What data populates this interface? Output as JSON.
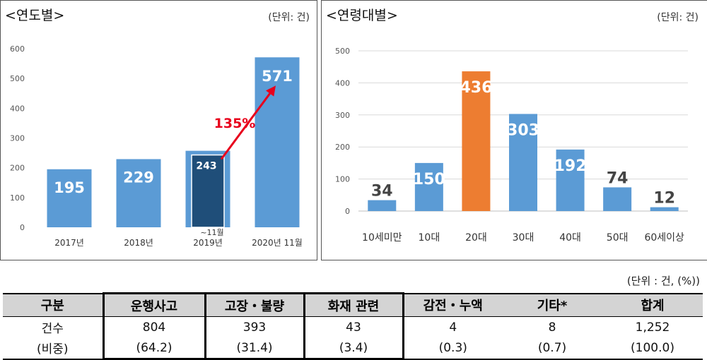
{
  "chart_data": [
    {
      "type": "bar",
      "title": "<연도별>",
      "unit": "(단위: 건)",
      "categories": [
        "2017년",
        "2018년",
        "2019년",
        "2020년 11월"
      ],
      "values": [
        195,
        229,
        257,
        571
      ],
      "ylim": [
        0,
        600
      ],
      "yticks": [
        0,
        100,
        200,
        300,
        400,
        500,
        600
      ],
      "grid": false,
      "color": "#5b9bd5",
      "inset_bar": {
        "category": "2019년",
        "value": 243,
        "label": "~11월",
        "color": "#1f4e79"
      },
      "annotation": {
        "text": "135%",
        "color": "#e8001c"
      }
    },
    {
      "type": "bar",
      "title": "<연령대별>",
      "unit": "(단위: 건)",
      "categories": [
        "10세미만",
        "10대",
        "20대",
        "30대",
        "40대",
        "50대",
        "60세이상"
      ],
      "values": [
        34,
        150,
        436,
        303,
        192,
        74,
        12
      ],
      "ylim": [
        0,
        500
      ],
      "yticks": [
        0,
        100,
        200,
        300,
        400,
        500
      ],
      "grid": true,
      "color": "#5b9bd5",
      "highlight": {
        "category": "20대",
        "color": "#ed7d31"
      }
    }
  ],
  "table": {
    "unit_note": "(단위 : 건, (%))",
    "headers": [
      "구분",
      "운행사고",
      "고장・불량",
      "화재 관련",
      "감전・누액",
      "기타*",
      "합계"
    ],
    "row_counts": [
      "건수",
      "804",
      "393",
      "43",
      "4",
      "8",
      "1,252"
    ],
    "row_ratios": [
      "(비중)",
      "(64.2)",
      "(31.4)",
      "(3.4)",
      "(0.3)",
      "(0.7)",
      "(100.0)"
    ]
  }
}
